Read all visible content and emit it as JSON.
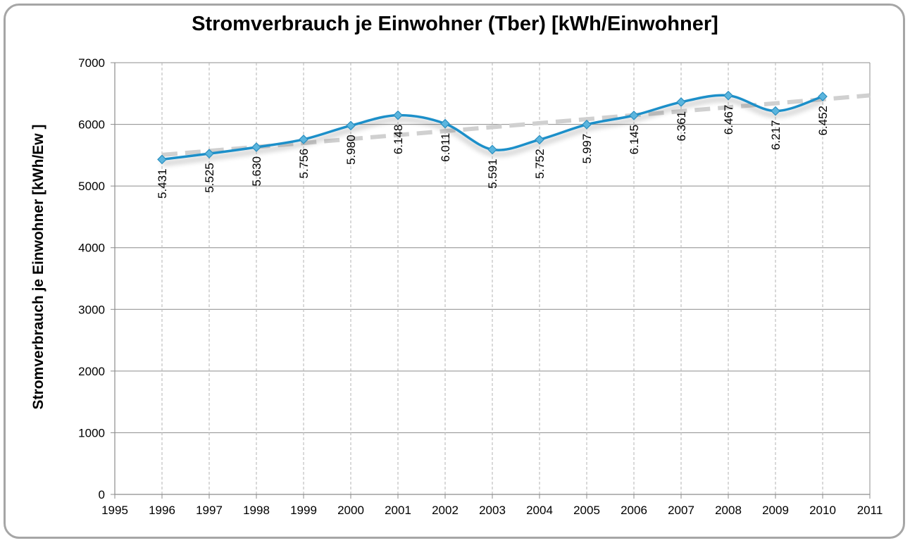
{
  "chart_data": {
    "type": "line",
    "title": "Stromverbrauch  je Einwohner (Tber) [kWh/Einwohner]",
    "ylabel": "Stromverbrauch  je Einwohner [kWh/Ew ]",
    "xlabel": "",
    "xlim": [
      1995,
      2011
    ],
    "ylim": [
      0,
      7000
    ],
    "xticks": [
      1995,
      1996,
      1997,
      1998,
      1999,
      2000,
      2001,
      2002,
      2003,
      2004,
      2005,
      2006,
      2007,
      2008,
      2009,
      2010,
      2011
    ],
    "yticks": [
      0,
      1000,
      2000,
      3000,
      4000,
      5000,
      6000,
      7000
    ],
    "grid": true,
    "series": [
      {
        "x": [
          1996,
          1997,
          1998,
          1999,
          2000,
          2001,
          2002,
          2003,
          2004,
          2005,
          2006,
          2007,
          2008,
          2009,
          2010
        ],
        "values": [
          5431,
          5525,
          5630,
          5756,
          5980,
          6148,
          6011,
          5591,
          5752,
          5997,
          6145,
          6361,
          6467,
          6217,
          6452
        ],
        "labels": [
          "5.431",
          "5.525",
          "5.630",
          "5.756",
          "5.980",
          "6.148",
          "6.011",
          "5.591",
          "5.752",
          "5.997",
          "6.145",
          "6.361",
          "6.467",
          "6.217",
          "6.452"
        ],
        "color": "#1a8fc9",
        "marker": "diamond",
        "smooth": true
      }
    ],
    "trendline": {
      "type": "linear",
      "x_range": [
        1996,
        2011
      ],
      "values_at_range": [
        5505,
        6470
      ],
      "color": "#d0d0d0",
      "dashed": true
    }
  }
}
